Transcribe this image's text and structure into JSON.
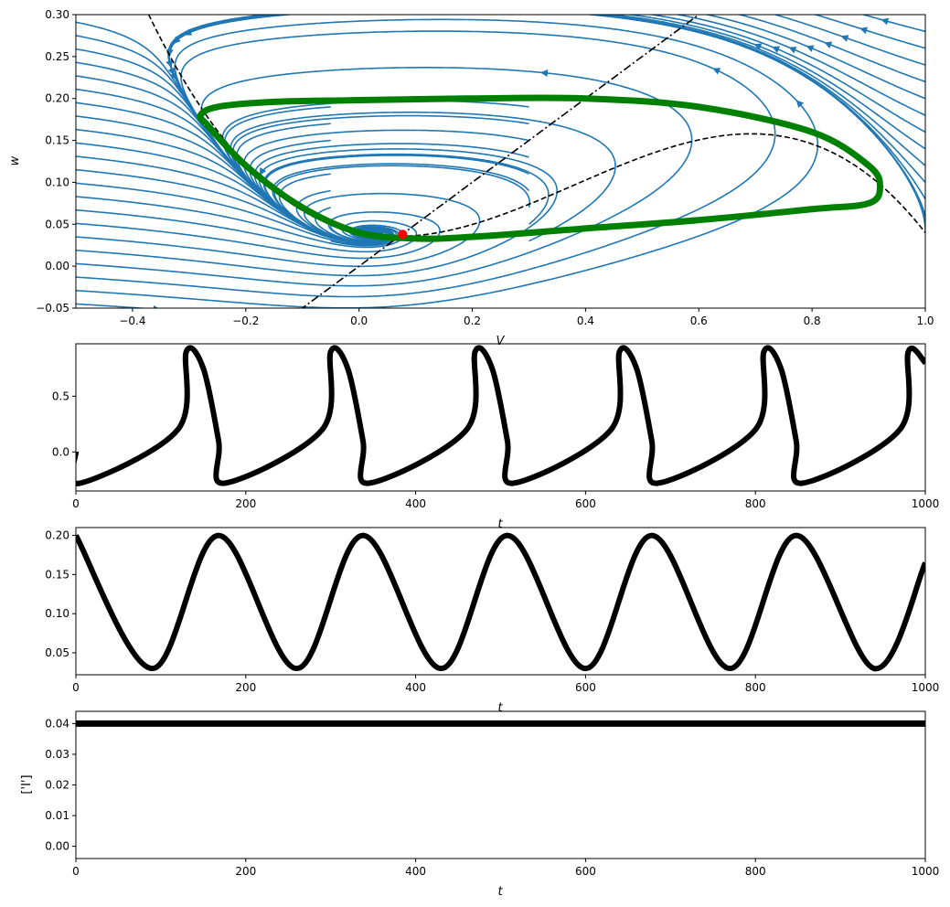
{
  "figure": {
    "background": "#ffffff"
  },
  "colors": {
    "stream": "#1f77b4",
    "orbit": "#008000",
    "fixed_point": "#ff0000",
    "trace": "#000000",
    "nullcline": "#000000"
  },
  "chart_data": [
    {
      "type": "line",
      "subtype": "phase-plane-streamplot",
      "xlabel": "V",
      "ylabel": "w",
      "xlim": [
        -0.5,
        1.0
      ],
      "ylim": [
        -0.05,
        0.3
      ],
      "xticks": [
        "−0.4",
        "−0.2",
        "0.0",
        "0.2",
        "0.4",
        "0.6",
        "0.8",
        "1.0"
      ],
      "yticks": [
        "−0.05",
        "0.00",
        "0.05",
        "0.10",
        "0.15",
        "0.20",
        "0.25",
        "0.30"
      ],
      "grid": false,
      "series": [
        {
          "role": "V-nullcline",
          "style": "dashed",
          "formula": "w = V(V-0.139)(1-V) + 0.04"
        },
        {
          "role": "w-nullcline",
          "style": "dashdot",
          "formula": "w = 0.5V"
        },
        {
          "role": "limit-cycle",
          "style": "solid-thick",
          "x": [
            -0.27,
            -0.2,
            -0.1,
            0.0,
            0.1,
            0.2,
            0.4,
            0.6,
            0.8,
            0.9,
            0.92,
            0.9,
            0.8,
            0.6,
            0.4,
            0.2,
            0.0,
            -0.15,
            -0.25,
            -0.28,
            -0.27
          ],
          "y": [
            0.17,
            0.12,
            0.07,
            0.04,
            0.033,
            0.035,
            0.045,
            0.055,
            0.068,
            0.075,
            0.095,
            0.12,
            0.16,
            0.19,
            0.2,
            0.2,
            0.198,
            0.196,
            0.19,
            0.18,
            0.17
          ]
        },
        {
          "role": "fixed-point",
          "style": "marker",
          "x": [
            0.077
          ],
          "y": [
            0.038
          ]
        }
      ]
    },
    {
      "type": "line",
      "xlabel": "t",
      "ylabel": "",
      "xlim": [
        0,
        1000
      ],
      "ylim": [
        -0.35,
        0.97
      ],
      "xticks": [
        "0",
        "200",
        "400",
        "600",
        "800",
        "1000"
      ],
      "yticks": [
        "0.0",
        "0.5"
      ],
      "grid": false,
      "period": 170,
      "series": [
        {
          "role": "V(t)",
          "x": [
            0,
            5,
            120,
            130,
            150,
            168,
            175,
            290,
            300,
            320,
            338,
            345,
            460,
            470,
            490,
            508,
            515,
            630,
            640,
            660,
            678,
            685,
            800,
            810,
            830,
            848,
            855,
            970,
            980,
            1000
          ],
          "y": [
            0.0,
            -0.28,
            0.2,
            0.9,
            0.75,
            0.1,
            -0.28,
            0.2,
            0.9,
            0.75,
            0.1,
            -0.28,
            0.2,
            0.9,
            0.75,
            0.1,
            -0.28,
            0.2,
            0.9,
            0.75,
            0.1,
            -0.28,
            0.2,
            0.9,
            0.75,
            0.1,
            -0.28,
            0.2,
            0.9,
            0.8
          ]
        }
      ]
    },
    {
      "type": "line",
      "xlabel": "t",
      "ylabel": "",
      "xlim": [
        0,
        1000
      ],
      "ylim": [
        0.022,
        0.21
      ],
      "xticks": [
        "0",
        "200",
        "400",
        "600",
        "800",
        "1000"
      ],
      "yticks": [
        "0.05",
        "0.10",
        "0.15",
        "0.20"
      ],
      "grid": false,
      "series": [
        {
          "role": "w(t)",
          "x": [
            0,
            90,
            168,
            260,
            338,
            430,
            508,
            600,
            678,
            770,
            848,
            940,
            1000
          ],
          "y": [
            0.2,
            0.03,
            0.2,
            0.03,
            0.2,
            0.03,
            0.2,
            0.03,
            0.2,
            0.03,
            0.2,
            0.03,
            0.165
          ]
        }
      ]
    },
    {
      "type": "line",
      "xlabel": "t",
      "ylabel": "['I']",
      "xlim": [
        0,
        1000
      ],
      "ylim": [
        -0.004,
        0.044
      ],
      "xticks": [
        "0",
        "200",
        "400",
        "600",
        "800",
        "1000"
      ],
      "yticks": [
        "0.00",
        "0.01",
        "0.02",
        "0.03",
        "0.04"
      ],
      "grid": false,
      "series": [
        {
          "role": "I(t)",
          "x": [
            0,
            1000
          ],
          "y": [
            0.04,
            0.04
          ]
        }
      ]
    }
  ]
}
